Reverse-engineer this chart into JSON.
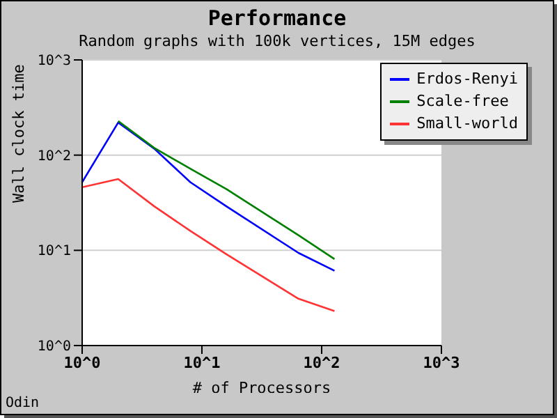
{
  "chart_data": {
    "type": "line",
    "title": "Performance",
    "subtitle": "Random graphs with 100k vertices, 15M edges",
    "xlabel": "# of Processors",
    "ylabel": "Wall clock time",
    "annotations": [
      "Odin"
    ],
    "x": [
      1,
      2,
      4,
      8,
      16,
      64,
      128
    ],
    "series": [
      {
        "name": "Erdos-Renyi",
        "color": "#0000ff",
        "values": [
          52,
          220,
          117,
          52,
          29,
          9.4,
          6.1
        ]
      },
      {
        "name": "Scale-free",
        "color": "#008000",
        "values": [
          null,
          228,
          119,
          72,
          44,
          14.4,
          8.1
        ]
      },
      {
        "name": "Small-world",
        "color": "#ff3333",
        "values": [
          46,
          56,
          29,
          16,
          9.1,
          3.1,
          2.3
        ]
      }
    ],
    "log": "xy",
    "xlim": [
      1,
      1000
    ],
    "ylim": [
      1,
      1000
    ],
    "xticks": [
      {
        "value": 1,
        "label": "10^0"
      },
      {
        "value": 10,
        "label": "10^1"
      },
      {
        "value": 100,
        "label": "10^2"
      },
      {
        "value": 1000,
        "label": "10^3"
      }
    ],
    "yticks": [
      {
        "value": 1,
        "label": "10^0"
      },
      {
        "value": 10,
        "label": "10^1"
      },
      {
        "value": 100,
        "label": "10^2"
      },
      {
        "value": 1000,
        "label": "10^3"
      }
    ],
    "grid": "y",
    "legend": "top right",
    "marker": "none",
    "line_style": "solid"
  }
}
